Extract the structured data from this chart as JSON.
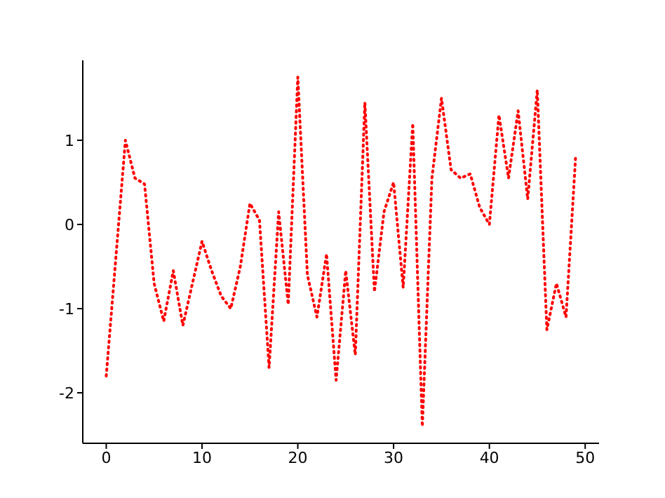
{
  "chart_data": {
    "type": "line",
    "x": [
      0,
      1,
      2,
      3,
      4,
      5,
      6,
      7,
      8,
      9,
      10,
      11,
      12,
      13,
      14,
      15,
      16,
      17,
      18,
      19,
      20,
      21,
      22,
      23,
      24,
      25,
      26,
      27,
      28,
      29,
      30,
      31,
      32,
      33,
      34,
      35,
      36,
      37,
      38,
      39,
      40,
      41,
      42,
      43,
      44,
      45,
      46,
      47,
      48,
      49
    ],
    "series": [
      {
        "color": "#ff0000",
        "line_style": "dotted",
        "values": [
          -1.8,
          -0.4,
          1.0,
          0.55,
          0.48,
          -0.7,
          -1.15,
          -0.55,
          -1.2,
          -0.7,
          -0.2,
          -0.55,
          -0.85,
          -1.0,
          -0.5,
          0.25,
          0.05,
          -1.7,
          0.15,
          -0.95,
          1.75,
          -0.6,
          -1.1,
          -0.35,
          -1.85,
          -0.55,
          -1.55,
          1.45,
          -0.8,
          0.15,
          0.5,
          -0.75,
          1.2,
          -2.4,
          0.55,
          1.5,
          0.65,
          0.55,
          0.6,
          0.2,
          0.0,
          1.3,
          0.55,
          1.35,
          0.3,
          1.6,
          -1.25,
          -0.7,
          -1.1,
          0.8
        ]
      }
    ],
    "xlim": [
      -2.45,
      51.45
    ],
    "xticks": [
      0,
      10,
      20,
      30,
      40,
      50
    ],
    "ylim": [
      -2.6,
      1.95
    ],
    "yticks": [
      -2,
      -1,
      0,
      1
    ]
  }
}
